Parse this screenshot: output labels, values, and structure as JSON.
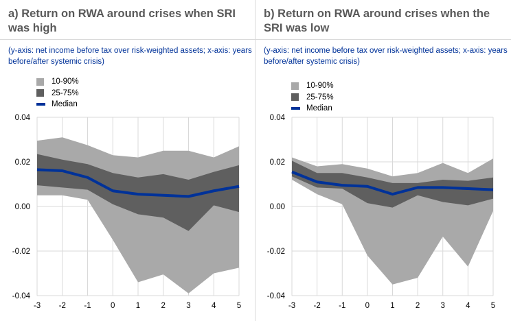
{
  "colors": {
    "band_outer": "#a9a9a9",
    "band_inner": "#5f5f5f",
    "median": "#003299",
    "grid": "#d9d9d9",
    "title": "#595959",
    "subtitle": "#003299"
  },
  "chart_data": [
    {
      "type": "area",
      "title": "a) Return on RWA around crises when SRI was high",
      "subtitle": "(y-axis: net income before tax over risk-weighted assets; x-axis: years before/after systemic crisis)",
      "x": [
        -3,
        -2,
        -1,
        0,
        1,
        2,
        3,
        4,
        5
      ],
      "x_tick_labels": [
        "-3",
        "-2",
        "-1",
        "0",
        "1",
        "2",
        "3",
        "4",
        "5"
      ],
      "y_tick_labels": [
        "0.04",
        "0.02",
        "0.00",
        "-0.02",
        "-0.04"
      ],
      "y_ticks": [
        0.04,
        0.02,
        0.0,
        -0.02,
        -0.04
      ],
      "ylim": [
        -0.04,
        0.04
      ],
      "xlim": [
        -3,
        5
      ],
      "grid": true,
      "legend": {
        "placement": "top-left",
        "entries": [
          "10-90%",
          "25-75%",
          "Median"
        ]
      },
      "series": [
        {
          "name": "10th percentile",
          "values": [
            0.005,
            0.005,
            0.003,
            -0.015,
            -0.034,
            -0.0305,
            -0.039,
            -0.03,
            -0.0275
          ]
        },
        {
          "name": "25th percentile",
          "values": [
            0.0095,
            0.0085,
            0.0075,
            0.001,
            -0.0035,
            -0.005,
            -0.011,
            0.0005,
            -0.0025
          ]
        },
        {
          "name": "Median",
          "values": [
            0.0165,
            0.016,
            0.013,
            0.007,
            0.0055,
            0.005,
            0.0045,
            0.007,
            0.009
          ]
        },
        {
          "name": "75th percentile",
          "values": [
            0.0235,
            0.021,
            0.019,
            0.015,
            0.013,
            0.0145,
            0.012,
            0.0155,
            0.0185
          ]
        },
        {
          "name": "90th percentile",
          "values": [
            0.0295,
            0.031,
            0.0275,
            0.023,
            0.022,
            0.025,
            0.025,
            0.022,
            0.027
          ]
        }
      ]
    },
    {
      "type": "area",
      "title": "b) Return on RWA around crises when the SRI was low",
      "subtitle": "(y-axis: net income before tax over risk-weighted assets; x-axis: years before/after systemic crisis)",
      "x": [
        -3,
        -2,
        -1,
        0,
        1,
        2,
        3,
        4,
        5
      ],
      "x_tick_labels": [
        "-3",
        "-2",
        "-1",
        "0",
        "1",
        "2",
        "3",
        "4",
        "5"
      ],
      "y_tick_labels": [
        "0.04",
        "0.02",
        "0.00",
        "-0.02",
        "-0.04"
      ],
      "y_ticks": [
        0.04,
        0.02,
        0.0,
        -0.02,
        -0.04
      ],
      "ylim": [
        -0.04,
        0.04
      ],
      "xlim": [
        -3,
        5
      ],
      "grid": true,
      "legend": {
        "placement": "top-left",
        "entries": [
          "10-90%",
          "25-75%",
          "Median"
        ]
      },
      "series": [
        {
          "name": "10th percentile",
          "values": [
            0.012,
            0.0055,
            0.001,
            -0.022,
            -0.035,
            -0.032,
            -0.0135,
            -0.027,
            -0.002
          ]
        },
        {
          "name": "25th percentile",
          "values": [
            0.0135,
            0.0085,
            0.008,
            0.0015,
            -0.0005,
            0.005,
            0.002,
            0.0005,
            0.0035
          ]
        },
        {
          "name": "Median",
          "values": [
            0.0155,
            0.011,
            0.0095,
            0.009,
            0.0055,
            0.0085,
            0.0085,
            0.008,
            0.0075
          ]
        },
        {
          "name": "75th percentile",
          "values": [
            0.0205,
            0.015,
            0.015,
            0.013,
            0.0105,
            0.0105,
            0.012,
            0.0115,
            0.013
          ]
        },
        {
          "name": "90th percentile",
          "values": [
            0.022,
            0.018,
            0.019,
            0.017,
            0.0135,
            0.015,
            0.0195,
            0.015,
            0.0215
          ]
        }
      ]
    }
  ]
}
